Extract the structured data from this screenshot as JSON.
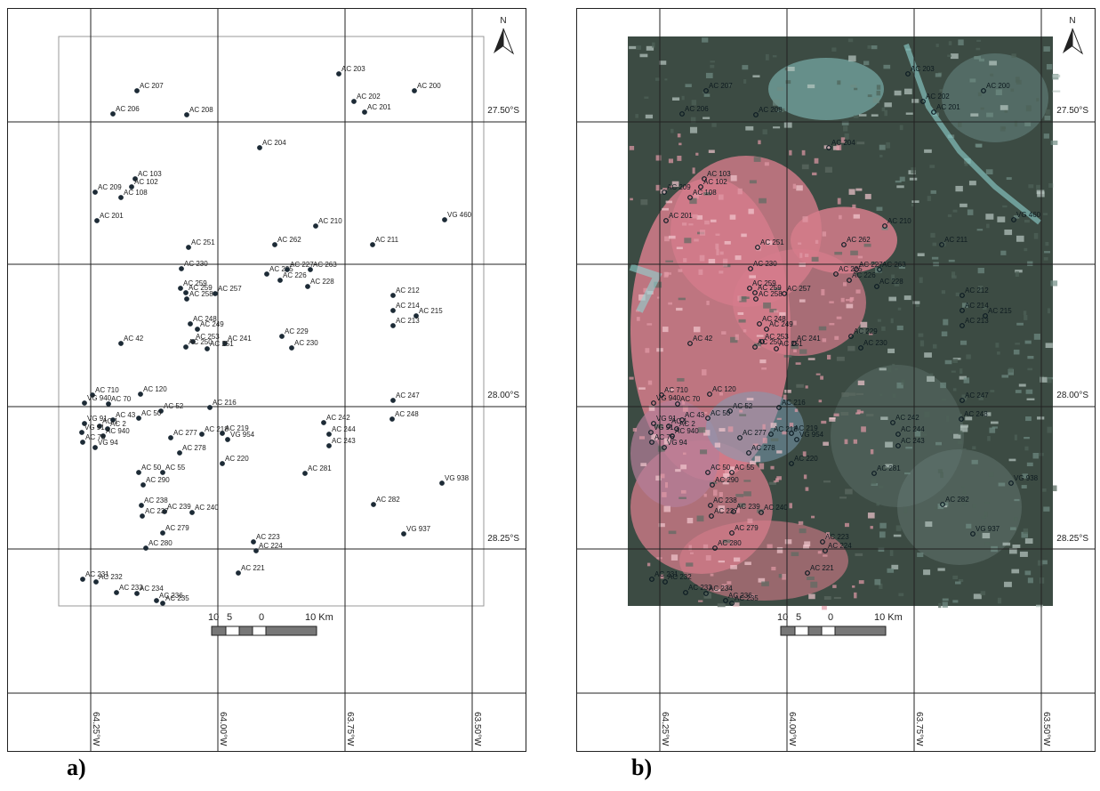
{
  "figure": {
    "panels": [
      {
        "letter": "a)",
        "background": "white",
        "lat_labels": [
          "27.50°S",
          "28.00°S",
          "28.25°S"
        ],
        "lon_labels": [
          "64.25°W",
          "64.00°W",
          "63.75°W",
          "63.50°W"
        ]
      },
      {
        "letter": "b)",
        "background": "satellite false-color composite",
        "lat_labels": [
          "27.50°S",
          "28.00°S",
          "28.25°S"
        ],
        "lon_labels": [
          "64.25°W",
          "64.00°W",
          "63.75°W",
          "63.50°W"
        ]
      }
    ],
    "north_label": "N",
    "scale_bar": {
      "labels": [
        "10",
        "5",
        "0",
        "10 Km"
      ]
    },
    "colors": {
      "site_marker": "#1d2b36",
      "image_pink": "#d57c8b",
      "image_green": "#3c4b43",
      "image_cyan": "#8fd3d2"
    }
  },
  "sites": [
    {
      "label": "AC 207"
    },
    {
      "label": "AC 206"
    },
    {
      "label": "AC 208"
    },
    {
      "label": "AC 203"
    },
    {
      "label": "AC 202"
    },
    {
      "label": "AC 201"
    },
    {
      "label": "AC 200"
    },
    {
      "label": "AC 204"
    },
    {
      "label": "AC 103"
    },
    {
      "label": "AC 102"
    },
    {
      "label": "AC 209"
    },
    {
      "label": "AC 108"
    },
    {
      "label": "AC 201"
    },
    {
      "label": "AC 210"
    },
    {
      "label": "VG 460"
    },
    {
      "label": "AC 251"
    },
    {
      "label": "AC 262"
    },
    {
      "label": "AC 211"
    },
    {
      "label": "AC 230"
    },
    {
      "label": "AC 225"
    },
    {
      "label": "AC 227"
    },
    {
      "label": "AC 263"
    },
    {
      "label": "AC 226"
    },
    {
      "label": "AC 228"
    },
    {
      "label": "AC 259"
    },
    {
      "label": "AC 259"
    },
    {
      "label": "AC 257"
    },
    {
      "label": "AC 258"
    },
    {
      "label": "AC 212"
    },
    {
      "label": "AC 214"
    },
    {
      "label": "AC 215"
    },
    {
      "label": "AC 213"
    },
    {
      "label": "AC 248"
    },
    {
      "label": "AC 249"
    },
    {
      "label": "AC 229"
    },
    {
      "label": "AC 42"
    },
    {
      "label": "AC 253"
    },
    {
      "label": "AC 241"
    },
    {
      "label": "AC 230"
    },
    {
      "label": "AC 250"
    },
    {
      "label": "AC 251"
    },
    {
      "label": "AC 710"
    },
    {
      "label": "AC 120"
    },
    {
      "label": "VG 940"
    },
    {
      "label": "AC 70"
    },
    {
      "label": "AC 52"
    },
    {
      "label": "AC 216"
    },
    {
      "label": "AC 247"
    },
    {
      "label": "VG 91"
    },
    {
      "label": "AC 1"
    },
    {
      "label": "AC 43"
    },
    {
      "label": "AC 50"
    },
    {
      "label": "AC 2"
    },
    {
      "label": "AC 242"
    },
    {
      "label": "AC 248"
    },
    {
      "label": "VG 91"
    },
    {
      "label": "AC 940"
    },
    {
      "label": "AC 277"
    },
    {
      "label": "AC 218"
    },
    {
      "label": "AC 219"
    },
    {
      "label": "AC 244"
    },
    {
      "label": "AC 76"
    },
    {
      "label": "VG 94"
    },
    {
      "label": "VG 954"
    },
    {
      "label": "AC 243"
    },
    {
      "label": "AC 278"
    },
    {
      "label": "AC 220"
    },
    {
      "label": "AC 50"
    },
    {
      "label": "AC 55"
    },
    {
      "label": "AC 281"
    },
    {
      "label": "VG 938"
    },
    {
      "label": "AC 290"
    },
    {
      "label": "AC 238"
    },
    {
      "label": "AC 239"
    },
    {
      "label": "AC 240"
    },
    {
      "label": "AC 282"
    },
    {
      "label": "AC 237"
    },
    {
      "label": "AC 279"
    },
    {
      "label": "VG 937"
    },
    {
      "label": "AC 223"
    },
    {
      "label": "AC 280"
    },
    {
      "label": "AC 224"
    },
    {
      "label": "AC 221"
    },
    {
      "label": "AC 231"
    },
    {
      "label": "AC 232"
    },
    {
      "label": "AC 233"
    },
    {
      "label": "AC 234"
    },
    {
      "label": "AC 236"
    },
    {
      "label": "AC 235"
    }
  ]
}
